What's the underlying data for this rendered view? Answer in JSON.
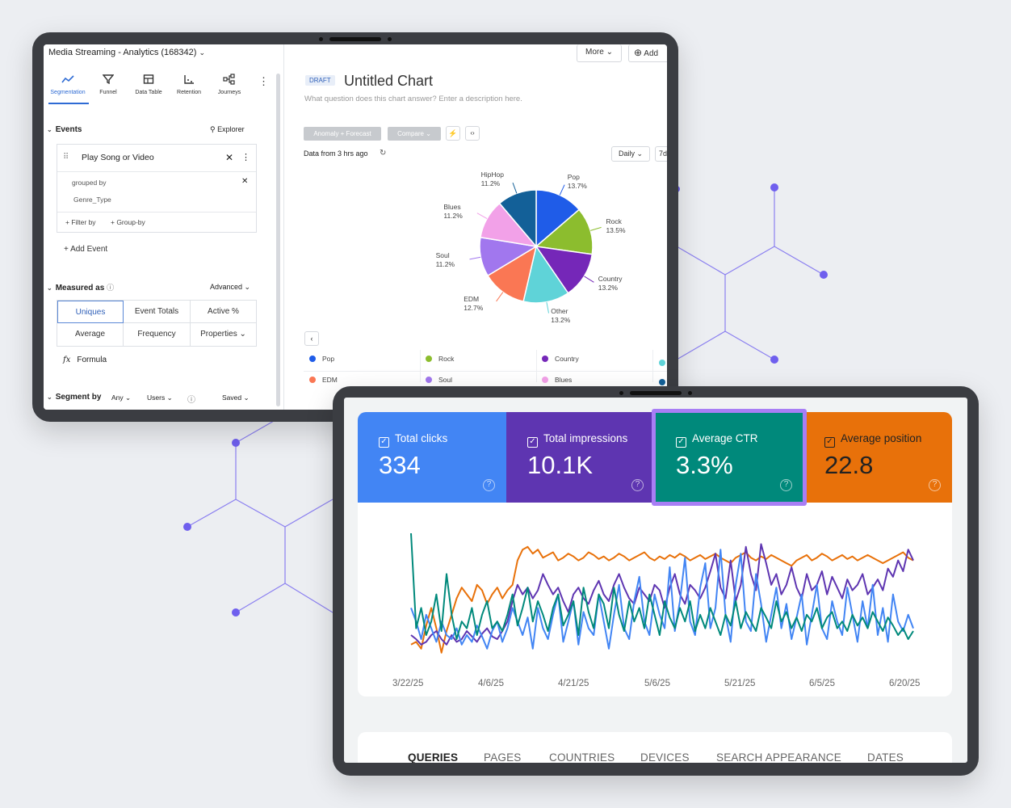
{
  "analytics": {
    "project_title": "Media Streaming - Analytics (168342)",
    "toolbar": [
      {
        "label": "Segmentation",
        "icon": "segmentation-icon",
        "active": true
      },
      {
        "label": "Funnel",
        "icon": "funnel-icon"
      },
      {
        "label": "Data Table",
        "icon": "data-table-icon"
      },
      {
        "label": "Retention",
        "icon": "retention-icon"
      },
      {
        "label": "Journeys",
        "icon": "journeys-icon"
      }
    ],
    "events_label": "Events",
    "explorer_label": "Explorer",
    "event_name": "Play Song or Video",
    "grouped_by_label": "grouped by",
    "group_property": "Genre_Type",
    "filter_by": "+ Filter by",
    "group_by": "+ Group-by",
    "add_event": "+ Add Event",
    "measured_as": "Measured as",
    "advanced": "Advanced",
    "measures": [
      "Uniques",
      "Event Totals",
      "Active %",
      "Average",
      "Frequency",
      "Properties"
    ],
    "formula_label": "Formula",
    "formula_icon_text": "fx",
    "segment_by": "Segment by",
    "segment_any": "Any",
    "segment_users": "Users",
    "saved": "Saved",
    "more_label": "More",
    "add_label": "Add",
    "draft_badge": "DRAFT",
    "chart_title": "Untitled Chart",
    "chart_description": "What question does this chart answer? Enter a description here.",
    "anomaly_label": "Anomaly + Forecast",
    "compare_label": "Compare",
    "data_freshness": "Data from 3 hrs ago",
    "interval": "Daily",
    "range_partial": "7d",
    "legend": [
      "Pop",
      "Rock",
      "Country",
      "EDM",
      "Soul",
      "Blues"
    ],
    "colors": {
      "accent": "#2e6bd4"
    }
  },
  "pie_chart_data": {
    "type": "pie",
    "slices": [
      {
        "name": "Pop",
        "value": 13.7,
        "label": "13.7%",
        "color": "#1f5ce8"
      },
      {
        "name": "Rock",
        "value": 13.5,
        "label": "13.5%",
        "color": "#8cbd2e"
      },
      {
        "name": "Country",
        "value": 13.2,
        "label": "13.2%",
        "color": "#7527b8"
      },
      {
        "name": "Other",
        "value": 13.2,
        "label": "13.2%",
        "color": "#5fd3d8"
      },
      {
        "name": "EDM",
        "value": 12.7,
        "label": "12.7%",
        "color": "#fa7754"
      },
      {
        "name": "Soul",
        "value": 11.2,
        "label": "11.2%",
        "color": "#a177ee"
      },
      {
        "name": "Blues",
        "value": 11.2,
        "label": "11.2%",
        "color": "#f2a1e8"
      },
      {
        "name": "HipHop",
        "value": 11.2,
        "label": "11.2%",
        "color": "#136098"
      }
    ]
  },
  "search_console": {
    "metrics": [
      {
        "label": "Total clicks",
        "value": "334",
        "color": "#4285f4"
      },
      {
        "label": "Total impressions",
        "value": "10.1K",
        "color": "#5e35b1"
      },
      {
        "label": "Average CTR",
        "value": "3.3%",
        "color": "#00897b",
        "highlighted": true
      },
      {
        "label": "Average position",
        "value": "22.8",
        "color": "#e8710a"
      }
    ],
    "highlight_color": "#a87ef5",
    "help_glyph": "?",
    "check_glyph": "✓",
    "tabs": [
      "QUERIES",
      "PAGES",
      "COUNTRIES",
      "DEVICES",
      "SEARCH APPEARANCE",
      "DATES"
    ]
  },
  "chart_data": {
    "type": "line",
    "x_ticks": [
      "3/22/25",
      "4/6/25",
      "4/21/25",
      "5/6/25",
      "5/21/25",
      "6/5/25",
      "6/20/25"
    ],
    "series": [
      {
        "color": "#e8710a",
        "values": [
          0.18,
          0.2,
          0.15,
          0.32,
          0.45,
          0.3,
          0.12,
          0.28,
          0.4,
          0.52,
          0.6,
          0.55,
          0.5,
          0.62,
          0.58,
          0.48,
          0.55,
          0.6,
          0.52,
          0.58,
          0.62,
          0.8,
          0.88,
          0.9,
          0.85,
          0.88,
          0.82,
          0.84,
          0.86,
          0.8,
          0.82,
          0.85,
          0.83,
          0.8,
          0.82,
          0.86,
          0.84,
          0.81,
          0.83,
          0.8,
          0.82,
          0.85,
          0.83,
          0.8,
          0.82,
          0.84,
          0.86,
          0.82,
          0.8,
          0.83,
          0.81,
          0.84,
          0.82,
          0.85,
          0.83,
          0.8,
          0.82,
          0.84,
          0.81,
          0.83,
          0.85,
          0.82,
          0.8,
          0.78,
          0.82,
          0.84,
          0.86,
          0.82,
          0.8,
          0.83,
          0.81,
          0.84,
          0.82,
          0.8,
          0.78,
          0.76,
          0.8,
          0.82,
          0.84,
          0.8,
          0.82,
          0.85,
          0.83,
          0.8,
          0.82,
          0.84,
          0.81,
          0.83,
          0.8,
          0.82,
          0.84,
          0.82,
          0.8,
          0.78,
          0.8,
          0.82,
          0.84,
          0.86,
          0.82,
          0.8
        ]
      },
      {
        "color": "#5e35b1",
        "values": [
          0.25,
          0.22,
          0.18,
          0.2,
          0.25,
          0.28,
          0.22,
          0.18,
          0.25,
          0.2,
          0.22,
          0.28,
          0.24,
          0.2,
          0.26,
          0.3,
          0.24,
          0.22,
          0.28,
          0.35,
          0.5,
          0.62,
          0.55,
          0.6,
          0.52,
          0.58,
          0.7,
          0.62,
          0.55,
          0.6,
          0.5,
          0.42,
          0.55,
          0.6,
          0.52,
          0.48,
          0.58,
          0.65,
          0.55,
          0.5,
          0.62,
          0.7,
          0.6,
          0.52,
          0.48,
          0.6,
          0.55,
          0.5,
          0.62,
          0.58,
          0.45,
          0.6,
          0.7,
          0.55,
          0.48,
          0.62,
          0.58,
          0.52,
          0.6,
          0.72,
          0.85,
          0.6,
          0.52,
          0.8,
          0.5,
          0.62,
          0.9,
          0.7,
          0.58,
          0.92,
          0.78,
          0.62,
          0.7,
          0.55,
          0.62,
          0.75,
          0.6,
          0.52,
          0.7,
          0.58,
          0.62,
          0.72,
          0.55,
          0.68,
          0.6,
          0.52,
          0.66,
          0.58,
          0.62,
          0.7,
          0.55,
          0.6,
          0.66,
          0.58,
          0.74,
          0.68,
          0.8,
          0.72,
          0.88,
          0.8
        ]
      },
      {
        "color": "#4285f4",
        "values": [
          0.45,
          0.35,
          0.22,
          0.4,
          0.3,
          0.2,
          0.35,
          0.25,
          0.22,
          0.3,
          0.18,
          0.25,
          0.2,
          0.32,
          0.24,
          0.15,
          0.28,
          0.35,
          0.2,
          0.3,
          0.45,
          0.35,
          0.25,
          0.38,
          0.15,
          0.45,
          0.3,
          0.22,
          0.4,
          0.55,
          0.2,
          0.35,
          0.5,
          0.18,
          0.42,
          0.3,
          0.25,
          0.55,
          0.35,
          0.15,
          0.4,
          0.62,
          0.3,
          0.22,
          0.5,
          0.68,
          0.35,
          0.25,
          0.55,
          0.4,
          0.3,
          0.75,
          0.28,
          0.5,
          0.82,
          0.35,
          0.25,
          0.6,
          0.78,
          0.3,
          0.45,
          0.88,
          0.4,
          0.2,
          0.62,
          0.85,
          0.35,
          0.28,
          0.7,
          0.48,
          0.2,
          0.4,
          0.6,
          0.3,
          0.48,
          0.22,
          0.38,
          0.55,
          0.18,
          0.4,
          0.62,
          0.3,
          0.22,
          0.5,
          0.35,
          0.25,
          0.6,
          0.4,
          0.2,
          0.5,
          0.3,
          0.62,
          0.25,
          0.45,
          0.2,
          0.55,
          0.35,
          0.28,
          0.4,
          0.3
        ]
      },
      {
        "color": "#00897b",
        "values": [
          1.0,
          0.3,
          0.45,
          0.25,
          0.35,
          0.55,
          0.28,
          0.7,
          0.4,
          0.22,
          0.35,
          0.3,
          0.45,
          0.25,
          0.4,
          0.5,
          0.3,
          0.35,
          0.28,
          0.4,
          0.55,
          0.32,
          0.45,
          0.6,
          0.35,
          0.5,
          0.4,
          0.28,
          0.45,
          0.55,
          0.32,
          0.4,
          0.5,
          0.25,
          0.6,
          0.42,
          0.3,
          0.55,
          0.48,
          0.3,
          0.6,
          0.4,
          0.28,
          0.5,
          0.35,
          0.45,
          0.3,
          0.55,
          0.4,
          0.25,
          0.5,
          0.38,
          0.3,
          0.45,
          0.35,
          0.5,
          0.28,
          0.4,
          0.3,
          0.45,
          0.35,
          0.25,
          0.4,
          0.32,
          0.5,
          0.3,
          0.42,
          0.35,
          0.28,
          0.45,
          0.38,
          0.3,
          0.5,
          0.35,
          0.42,
          0.3,
          0.38,
          0.28,
          0.4,
          0.35,
          0.45,
          0.3,
          0.38,
          0.42,
          0.3,
          0.35,
          0.28,
          0.4,
          0.32,
          0.38,
          0.3,
          0.42,
          0.35,
          0.28,
          0.38,
          0.32,
          0.25,
          0.3,
          0.22,
          0.28
        ]
      }
    ]
  }
}
